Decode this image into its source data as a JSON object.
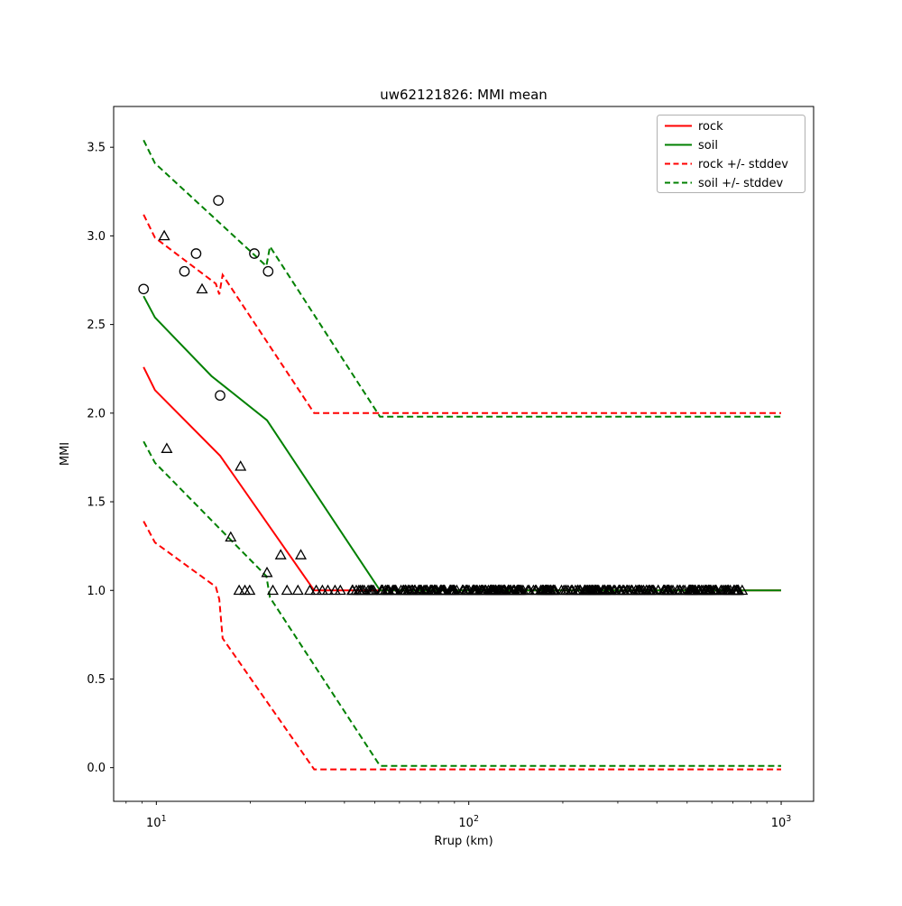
{
  "title": "uw62121826: MMI mean",
  "chart_data": {
    "type": "line",
    "title": "uw62121826: MMI mean",
    "xlabel": "Rrup (km)",
    "ylabel": "MMI",
    "axes": {
      "x_scale": "log",
      "xlim": [
        7.3,
        1270
      ],
      "ylim": [
        -0.19,
        3.73
      ],
      "grid": false,
      "x_major_ticks": [
        {
          "value": 10,
          "base": "10",
          "exp": "1"
        },
        {
          "value": 100,
          "base": "10",
          "exp": "2"
        },
        {
          "value": 1000,
          "base": "10",
          "exp": "3"
        }
      ],
      "x_minor_ticks": [
        8,
        9,
        20,
        30,
        40,
        50,
        60,
        70,
        80,
        90,
        200,
        300,
        400,
        500,
        600,
        700,
        800,
        900
      ],
      "y_ticks": [
        {
          "value": 0.0,
          "label": "0.0"
        },
        {
          "value": 0.5,
          "label": "0.5"
        },
        {
          "value": 1.0,
          "label": "1.0"
        },
        {
          "value": 1.5,
          "label": "1.5"
        },
        {
          "value": 2.0,
          "label": "2.0"
        },
        {
          "value": 2.5,
          "label": "2.5"
        },
        {
          "value": 3.0,
          "label": "3.0"
        },
        {
          "value": 3.5,
          "label": "3.5"
        }
      ]
    },
    "colors": {
      "rock": "#ff0000",
      "soil": "#008000",
      "markers": "#000000"
    },
    "series": [
      {
        "name": "rock -stddev",
        "color": "#ff0000",
        "style": "dashed",
        "x": [
          9.1,
          9.9,
          15.5,
          15.9,
          16.3,
          32,
          1000
        ],
        "y": [
          1.39,
          1.27,
          1.02,
          0.95,
          0.73,
          -0.01,
          -0.01
        ]
      },
      {
        "name": "soil -stddev",
        "color": "#008000",
        "style": "dashed",
        "x": [
          9.1,
          9.9,
          22.5,
          23.1,
          52,
          1000
        ],
        "y": [
          1.84,
          1.72,
          1.08,
          0.96,
          0.01,
          0.01
        ]
      },
      {
        "name": "rock +stddev",
        "color": "#ff0000",
        "style": "dashed",
        "x": [
          9.1,
          9.9,
          15.5,
          15.9,
          16.3,
          32,
          1000
        ],
        "y": [
          3.12,
          2.99,
          2.73,
          2.67,
          2.78,
          2.0,
          2.0
        ]
      },
      {
        "name": "soil +stddev",
        "color": "#008000",
        "style": "dashed",
        "x": [
          9.1,
          9.9,
          22.5,
          23.1,
          52,
          1000
        ],
        "y": [
          3.54,
          3.41,
          2.83,
          2.94,
          1.98,
          1.98
        ]
      },
      {
        "name": "rock",
        "color": "#ff0000",
        "style": "solid",
        "x": [
          9.1,
          9.9,
          16,
          32,
          1000
        ],
        "y": [
          2.26,
          2.13,
          1.76,
          1.0,
          1.0
        ]
      },
      {
        "name": "soil",
        "color": "#008000",
        "style": "solid",
        "x": [
          9.1,
          9.9,
          15,
          22.6,
          52,
          1000
        ],
        "y": [
          2.66,
          2.54,
          2.21,
          1.96,
          1.0,
          1.0
        ]
      }
    ],
    "scatter": {
      "circles": [
        [
          9.1,
          2.7
        ],
        [
          12.3,
          2.8
        ],
        [
          13.4,
          2.9
        ],
        [
          15.8,
          3.2
        ],
        [
          20.6,
          2.9
        ],
        [
          22.8,
          2.8
        ],
        [
          16.0,
          2.1
        ]
      ],
      "triangles": [
        [
          10.6,
          3.0
        ],
        [
          14.0,
          2.7
        ],
        [
          10.8,
          1.8
        ],
        [
          18.6,
          1.7
        ],
        [
          17.3,
          1.3
        ],
        [
          25.0,
          1.2
        ],
        [
          29.0,
          1.2
        ],
        [
          22.6,
          1.1
        ],
        [
          18.4,
          1.0
        ],
        [
          19.2,
          1.0
        ],
        [
          19.9,
          1.0
        ],
        [
          23.6,
          1.0
        ],
        [
          26.2,
          1.0
        ],
        [
          28.4,
          1.0
        ],
        [
          31.0,
          1.0
        ],
        [
          32.5,
          1.0
        ],
        [
          34.0,
          1.0
        ],
        [
          35.4,
          1.0
        ],
        [
          37.3,
          1.0
        ],
        [
          38.8,
          1.0
        ]
      ],
      "triangle_band": {
        "y": 1.0,
        "x_min": 42,
        "x_max": 755,
        "count": 300,
        "description": "dense overlapping open triangles at MMI 1.0 from ~42 km to ~755 km"
      }
    },
    "legend": {
      "position": "upper right",
      "entries": [
        {
          "label": "rock",
          "color": "#ff0000",
          "style": "solid"
        },
        {
          "label": "soil",
          "color": "#008000",
          "style": "solid"
        },
        {
          "label": "rock +/- stddev",
          "color": "#ff0000",
          "style": "dashed"
        },
        {
          "label": "soil +/- stddev",
          "color": "#008000",
          "style": "dashed"
        }
      ]
    }
  }
}
